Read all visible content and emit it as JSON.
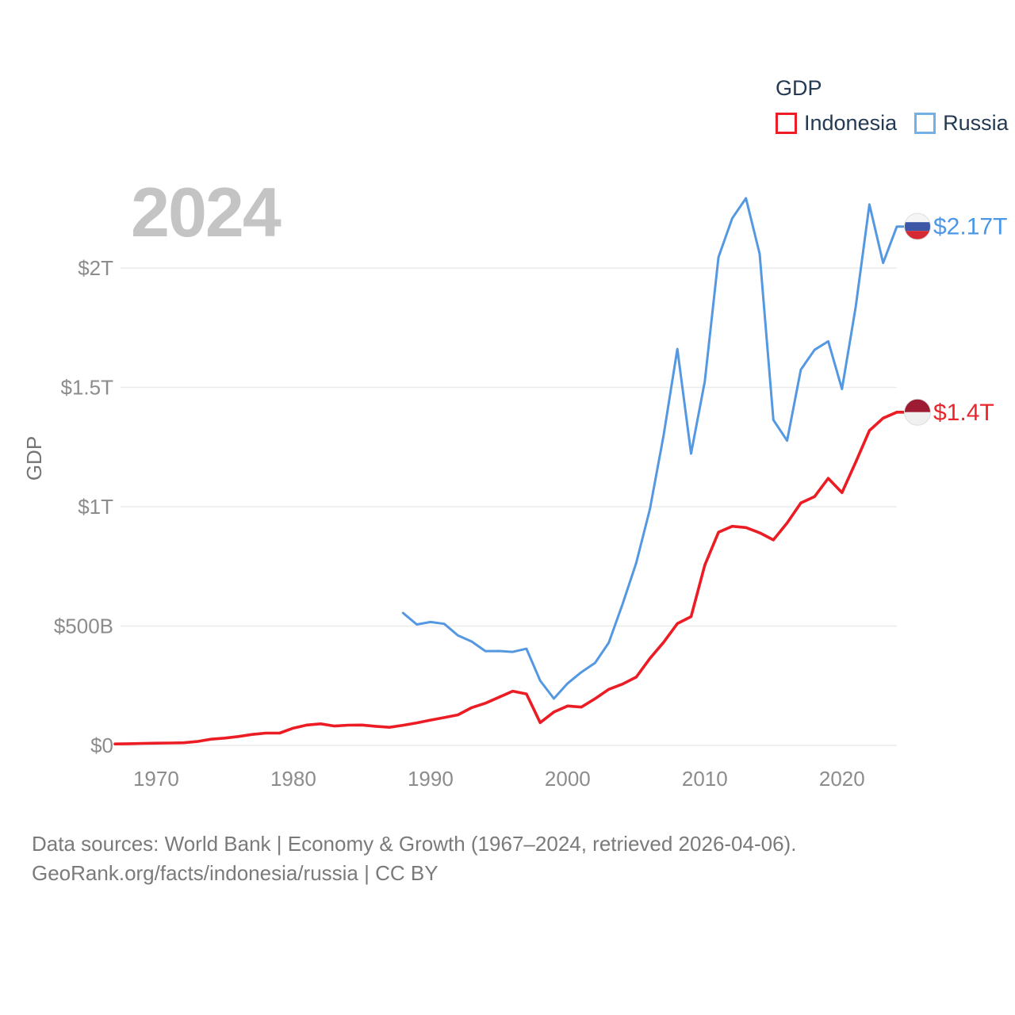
{
  "page": {
    "background": "#ffffff"
  },
  "watermark_year": "2024",
  "legend": {
    "title": "GDP",
    "items": [
      {
        "label": "Indonesia",
        "swatch_color": "#ee1c25"
      },
      {
        "label": "Russia",
        "swatch_color": "#74b0e8"
      }
    ]
  },
  "footer": {
    "line1": "Data sources: World Bank | Economy & Growth (1967–2024, retrieved 2026-04-06).",
    "line2": "GeoRank.org/facts/indonesia/russia | CC BY"
  },
  "chart_data": {
    "type": "line",
    "title": "GDP",
    "ylabel": "GDP",
    "x_range": [
      1967,
      2024
    ],
    "y_range_billions": [
      0,
      2400
    ],
    "grid": true,
    "legend_position": "top-right",
    "x_ticks": [
      {
        "value": 1970,
        "label": "1970"
      },
      {
        "value": 1980,
        "label": "1980"
      },
      {
        "value": 1990,
        "label": "1990"
      },
      {
        "value": 2000,
        "label": "2000"
      },
      {
        "value": 2010,
        "label": "2010"
      },
      {
        "value": 2020,
        "label": "2020"
      }
    ],
    "y_ticks": [
      {
        "value": 0,
        "label": "$0"
      },
      {
        "value": 500,
        "label": "$500B"
      },
      {
        "value": 1000,
        "label": "$1T"
      },
      {
        "value": 1500,
        "label": "$1.5T"
      },
      {
        "value": 2000,
        "label": "$2T"
      }
    ],
    "series": [
      {
        "name": "Indonesia",
        "color": "#ec1c24",
        "label_color": "#e8262c",
        "start_year": 1967,
        "end_label": "$1.4T",
        "flag": {
          "name": "indonesia-flag",
          "stripes": [
            [
              "#9d1b33",
              0.5
            ],
            [
              "#f0f0f0",
              0.5
            ]
          ]
        },
        "values_billions": [
          6.0,
          7.1,
          8.3,
          9.2,
          9.9,
          11.0,
          16.3,
          25.8,
          30.5,
          37.3,
          45.8,
          51.5,
          51.4,
          72.5,
          85.5,
          90.2,
          81.0,
          84.8,
          85.3,
          80.0,
          75.9,
          84.3,
          94.5,
          106.1,
          116.6,
          128.0,
          158.0,
          176.9,
          202.1,
          227.4,
          215.7,
          95.4,
          140.0,
          165.0,
          160.4,
          195.7,
          234.8,
          256.8,
          285.9,
          364.6,
          432.2,
          510.2,
          539.6,
          755.1,
          893.0,
          917.9,
          912.5,
          890.8,
          860.9,
          931.9,
          1015.6,
          1042.3,
          1119.1,
          1058.7,
          1186.5,
          1319.1,
          1371.2,
          1396.0
        ]
      },
      {
        "name": "Russia",
        "color": "#5598e2",
        "label_color": "#4a96e8",
        "start_year": 1988,
        "end_label": "$2.17T",
        "flag": {
          "name": "russia-flag",
          "stripes": [
            [
              "#f5f5f5",
              0.333
            ],
            [
              "#3d56a6",
              0.333
            ],
            [
              "#d52a33",
              0.334
            ]
          ]
        },
        "values_billions": [
          554.7,
          506.5,
          516.8,
          509.4,
          460.3,
          435.1,
          395.1,
          395.5,
          391.7,
          404.9,
          271.0,
          195.9,
          259.7,
          306.6,
          345.5,
          430.3,
          591.0,
          764.0,
          989.9,
          1299.7,
          1660.8,
          1222.6,
          1524.9,
          2045.9,
          2208.3,
          2292.5,
          2059.2,
          1363.5,
          1276.8,
          1574.2,
          1657.3,
          1693.1,
          1493.1,
          1836.9,
          2266.5,
          2021.4,
          2173.8
        ]
      }
    ]
  }
}
